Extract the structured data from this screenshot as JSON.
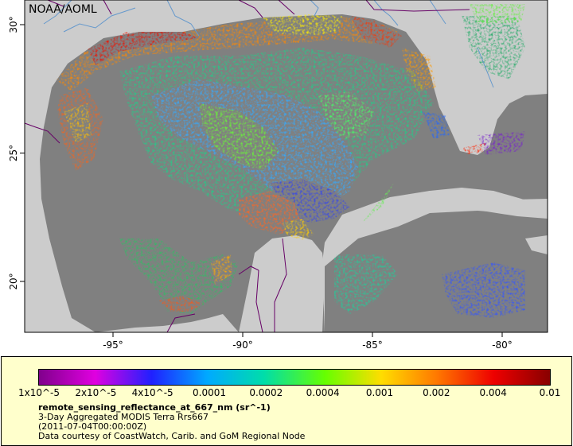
{
  "map": {
    "credit": "NOAA/AOML",
    "lon_ticks": [
      {
        "value": -95,
        "label": "-95°"
      },
      {
        "value": -90,
        "label": "-90°"
      },
      {
        "value": -85,
        "label": "-85°"
      },
      {
        "value": -80,
        "label": "-80°"
      }
    ],
    "lat_ticks": [
      {
        "value": 30,
        "label": "30°"
      },
      {
        "value": 25,
        "label": "25°"
      },
      {
        "value": 20,
        "label": "20°"
      }
    ],
    "colors": {
      "land": "#cccccc",
      "ocean_no_data": "#808080",
      "rivers": "#6699cc",
      "borders": "#660066"
    }
  },
  "legend": {
    "colorbar_labels": [
      "1x10^-5",
      "2x10^-5",
      "4x10^-5",
      "0.0001",
      "0.0002",
      "0.0004",
      "0.001",
      "0.002",
      "0.004",
      "0.01"
    ],
    "variable": "remote_sensing_reflectance_at_667_nm (sr^-1)",
    "line1": "3-Day Aggregated MODIS Terra Rrs667",
    "line2": "(2011-07-04T00:00:00Z)",
    "line3": "Data courtesy of CoastWatch, Carib. and GoM Regional Node"
  }
}
